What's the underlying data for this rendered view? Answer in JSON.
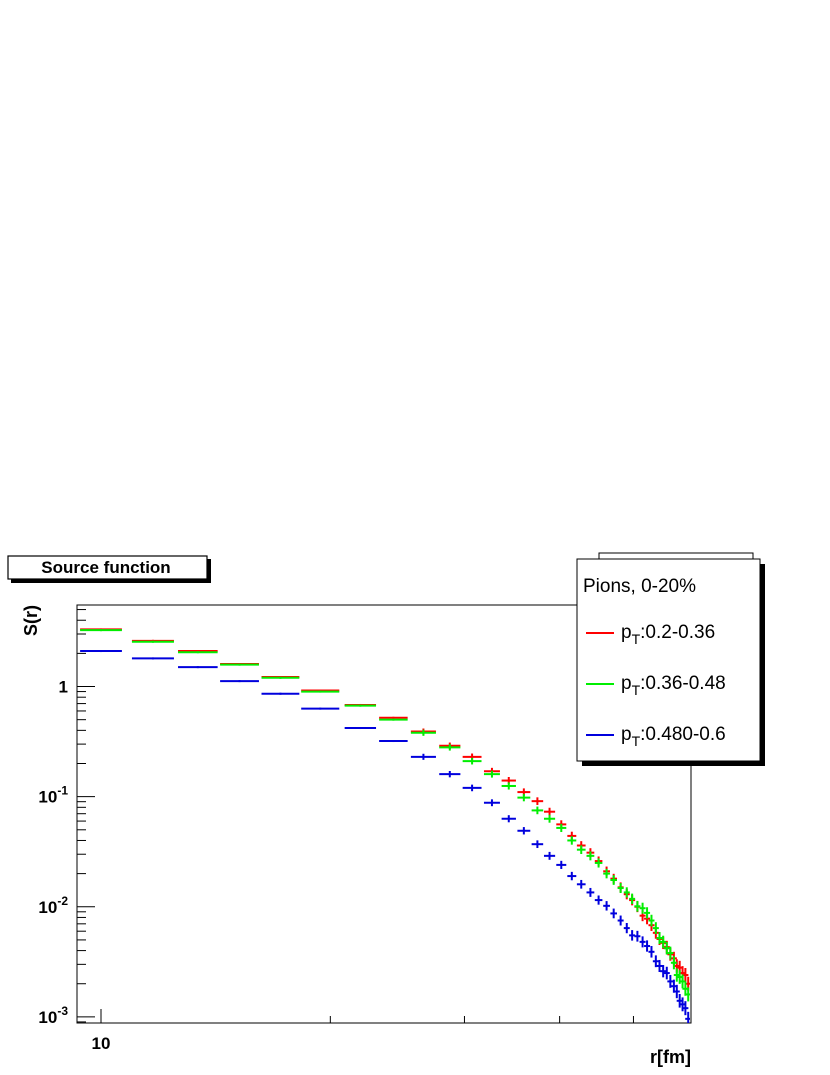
{
  "chart_data": {
    "type": "scatter",
    "title": "Source function",
    "xlabel": "r[fm]",
    "ylabel": "S(r)",
    "xscale": "log",
    "yscale": "log",
    "xlim": [
      9.3,
      59.5
    ],
    "ylim": [
      0.00088,
      5.5
    ],
    "x_ticks": [
      {
        "value": 10,
        "label": "10"
      }
    ],
    "y_ticks": [
      {
        "value": 0.001,
        "base": "10",
        "exp": "-3"
      },
      {
        "value": 0.01,
        "base": "10",
        "exp": "-2"
      },
      {
        "value": 0.1,
        "base": "10",
        "exp": "-1"
      },
      {
        "value": 1,
        "base": "1",
        "exp": ""
      }
    ],
    "legend": {
      "header": "Pions, 0-20%",
      "position": "top-right"
    },
    "series": [
      {
        "name_main": "p",
        "name_sub": "T",
        "name_rest": ":0.2-0.36",
        "color": "#ff0000",
        "points": [
          [
            10.0,
            3.3
          ],
          [
            11.7,
            2.6
          ],
          [
            13.4,
            2.1
          ],
          [
            15.2,
            1.6
          ],
          [
            17.2,
            1.22
          ],
          [
            19.4,
            0.92
          ],
          [
            21.9,
            0.68
          ],
          [
            24.2,
            0.52
          ],
          [
            26.5,
            0.39
          ],
          [
            28.7,
            0.29
          ],
          [
            30.7,
            0.23
          ],
          [
            32.6,
            0.17
          ],
          [
            34.3,
            0.14
          ],
          [
            35.9,
            0.11
          ],
          [
            37.4,
            0.091
          ],
          [
            38.8,
            0.073
          ],
          [
            40.2,
            0.056
          ],
          [
            41.5,
            0.044
          ],
          [
            42.7,
            0.036
          ],
          [
            43.9,
            0.031
          ],
          [
            45.0,
            0.026
          ],
          [
            46.1,
            0.021
          ],
          [
            47.1,
            0.018
          ],
          [
            48.1,
            0.015
          ],
          [
            49.0,
            0.013
          ],
          [
            49.8,
            0.0115
          ],
          [
            50.6,
            0.01
          ],
          [
            51.4,
            0.0083
          ],
          [
            52.1,
            0.0078
          ],
          [
            52.8,
            0.0068
          ],
          [
            53.5,
            0.0058
          ],
          [
            54.1,
            0.0051
          ],
          [
            54.7,
            0.0047
          ],
          [
            55.3,
            0.0043
          ],
          [
            55.9,
            0.0037
          ],
          [
            56.5,
            0.0034
          ],
          [
            57.0,
            0.0029
          ],
          [
            57.5,
            0.0028
          ],
          [
            58.0,
            0.0025
          ],
          [
            58.5,
            0.0024
          ],
          [
            59.0,
            0.002
          ]
        ]
      },
      {
        "name_main": "p",
        "name_sub": "T",
        "name_rest": ":0.36-0.48",
        "color": "#00ee00",
        "points": [
          [
            10.0,
            3.25
          ],
          [
            11.7,
            2.55
          ],
          [
            13.4,
            2.05
          ],
          [
            15.2,
            1.58
          ],
          [
            17.2,
            1.2
          ],
          [
            19.4,
            0.9
          ],
          [
            21.9,
            0.67
          ],
          [
            24.2,
            0.5
          ],
          [
            26.5,
            0.38
          ],
          [
            28.7,
            0.28
          ],
          [
            30.7,
            0.21
          ],
          [
            32.6,
            0.16
          ],
          [
            34.3,
            0.125
          ],
          [
            35.9,
            0.098
          ],
          [
            37.4,
            0.075
          ],
          [
            38.8,
            0.063
          ],
          [
            40.2,
            0.052
          ],
          [
            41.5,
            0.04
          ],
          [
            42.7,
            0.033
          ],
          [
            43.9,
            0.029
          ],
          [
            45.0,
            0.025
          ],
          [
            46.1,
            0.02
          ],
          [
            47.1,
            0.0175
          ],
          [
            48.1,
            0.0148
          ],
          [
            49.0,
            0.0135
          ],
          [
            49.8,
            0.0118
          ],
          [
            50.6,
            0.0101
          ],
          [
            51.4,
            0.0097
          ],
          [
            52.1,
            0.0088
          ],
          [
            52.8,
            0.0075
          ],
          [
            53.5,
            0.0064
          ],
          [
            54.1,
            0.0052
          ],
          [
            54.7,
            0.0048
          ],
          [
            55.3,
            0.0042
          ],
          [
            55.9,
            0.0038
          ],
          [
            56.5,
            0.0031
          ],
          [
            57.0,
            0.0024
          ],
          [
            57.5,
            0.0023
          ],
          [
            58.0,
            0.0021
          ],
          [
            58.5,
            0.0018
          ],
          [
            59.0,
            0.0016
          ]
        ]
      },
      {
        "name_main": "p",
        "name_sub": "T",
        "name_rest": ":0.480-0.6",
        "color": "#0000dd",
        "points": [
          [
            10.0,
            2.1
          ],
          [
            11.7,
            1.8
          ],
          [
            13.4,
            1.5
          ],
          [
            15.2,
            1.12
          ],
          [
            17.2,
            0.86
          ],
          [
            19.4,
            0.63
          ],
          [
            21.9,
            0.42
          ],
          [
            24.2,
            0.32
          ],
          [
            26.5,
            0.23
          ],
          [
            28.7,
            0.16
          ],
          [
            30.7,
            0.12
          ],
          [
            32.6,
            0.088
          ],
          [
            34.3,
            0.063
          ],
          [
            35.9,
            0.049
          ],
          [
            37.4,
            0.037
          ],
          [
            38.8,
            0.029
          ],
          [
            40.2,
            0.024
          ],
          [
            41.5,
            0.019
          ],
          [
            42.7,
            0.016
          ],
          [
            43.9,
            0.0135
          ],
          [
            45.0,
            0.0115
          ],
          [
            46.1,
            0.0102
          ],
          [
            47.1,
            0.0087
          ],
          [
            48.1,
            0.0075
          ],
          [
            49.0,
            0.0064
          ],
          [
            49.8,
            0.0055
          ],
          [
            50.6,
            0.0054
          ],
          [
            51.4,
            0.0048
          ],
          [
            52.1,
            0.0044
          ],
          [
            52.8,
            0.0039
          ],
          [
            53.5,
            0.0032
          ],
          [
            54.1,
            0.0029
          ],
          [
            54.7,
            0.0026
          ],
          [
            55.3,
            0.0025
          ],
          [
            55.9,
            0.0021
          ],
          [
            56.5,
            0.0019
          ],
          [
            57.0,
            0.0017
          ],
          [
            57.5,
            0.0014
          ],
          [
            58.0,
            0.0013
          ],
          [
            58.5,
            0.0012
          ],
          [
            59.0,
            0.00096
          ]
        ]
      }
    ]
  }
}
